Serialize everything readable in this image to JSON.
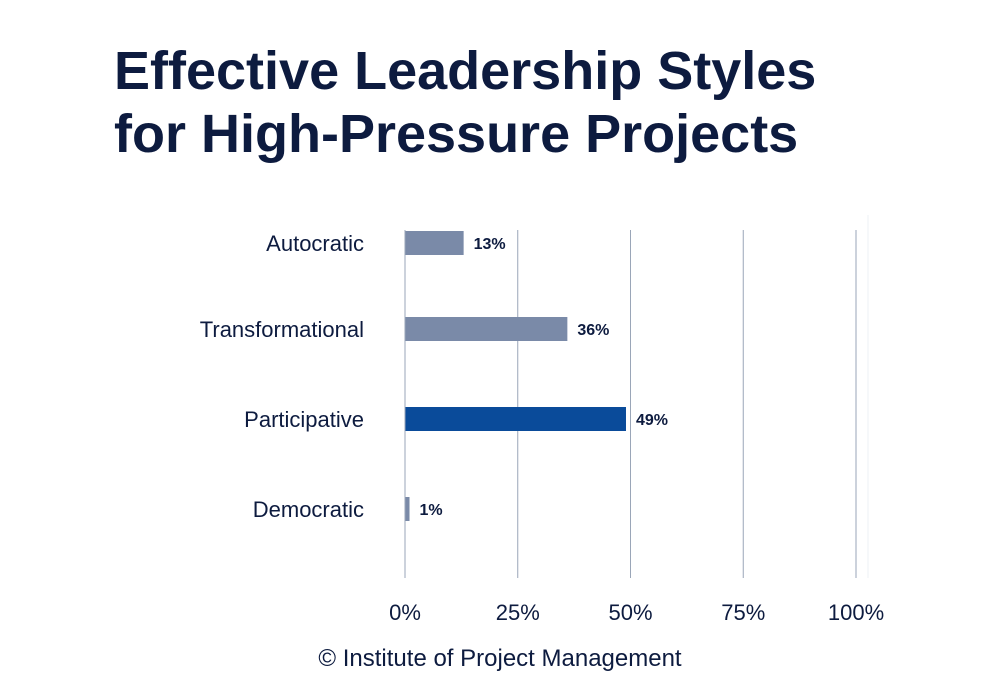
{
  "title_lines": [
    "Effective Leadership Styles",
    "for High-Pressure Projects"
  ],
  "source": "© Institute of Project Management",
  "colors": {
    "highlight": "#0a4b9a",
    "bar": "#7a8aa8",
    "text": "#0d1b3f",
    "grid": "#9aa6b8"
  },
  "chart_data": {
    "type": "bar",
    "orientation": "horizontal",
    "categories": [
      "Autocratic",
      "Transformational",
      "Participative",
      "Democratic"
    ],
    "values": [
      13,
      36,
      49,
      1
    ],
    "data_labels": [
      "13%",
      "36%",
      "49%",
      "1%"
    ],
    "highlighted": "Participative",
    "xlim": [
      0,
      100
    ],
    "xticks": [
      0,
      25,
      50,
      75,
      100
    ],
    "xtick_labels": [
      "0%",
      "25%",
      "50%",
      "75%",
      "100%"
    ],
    "title": "Effective Leadership Styles for High-Pressure Projects",
    "xlabel": "",
    "ylabel": "",
    "grid": true
  }
}
